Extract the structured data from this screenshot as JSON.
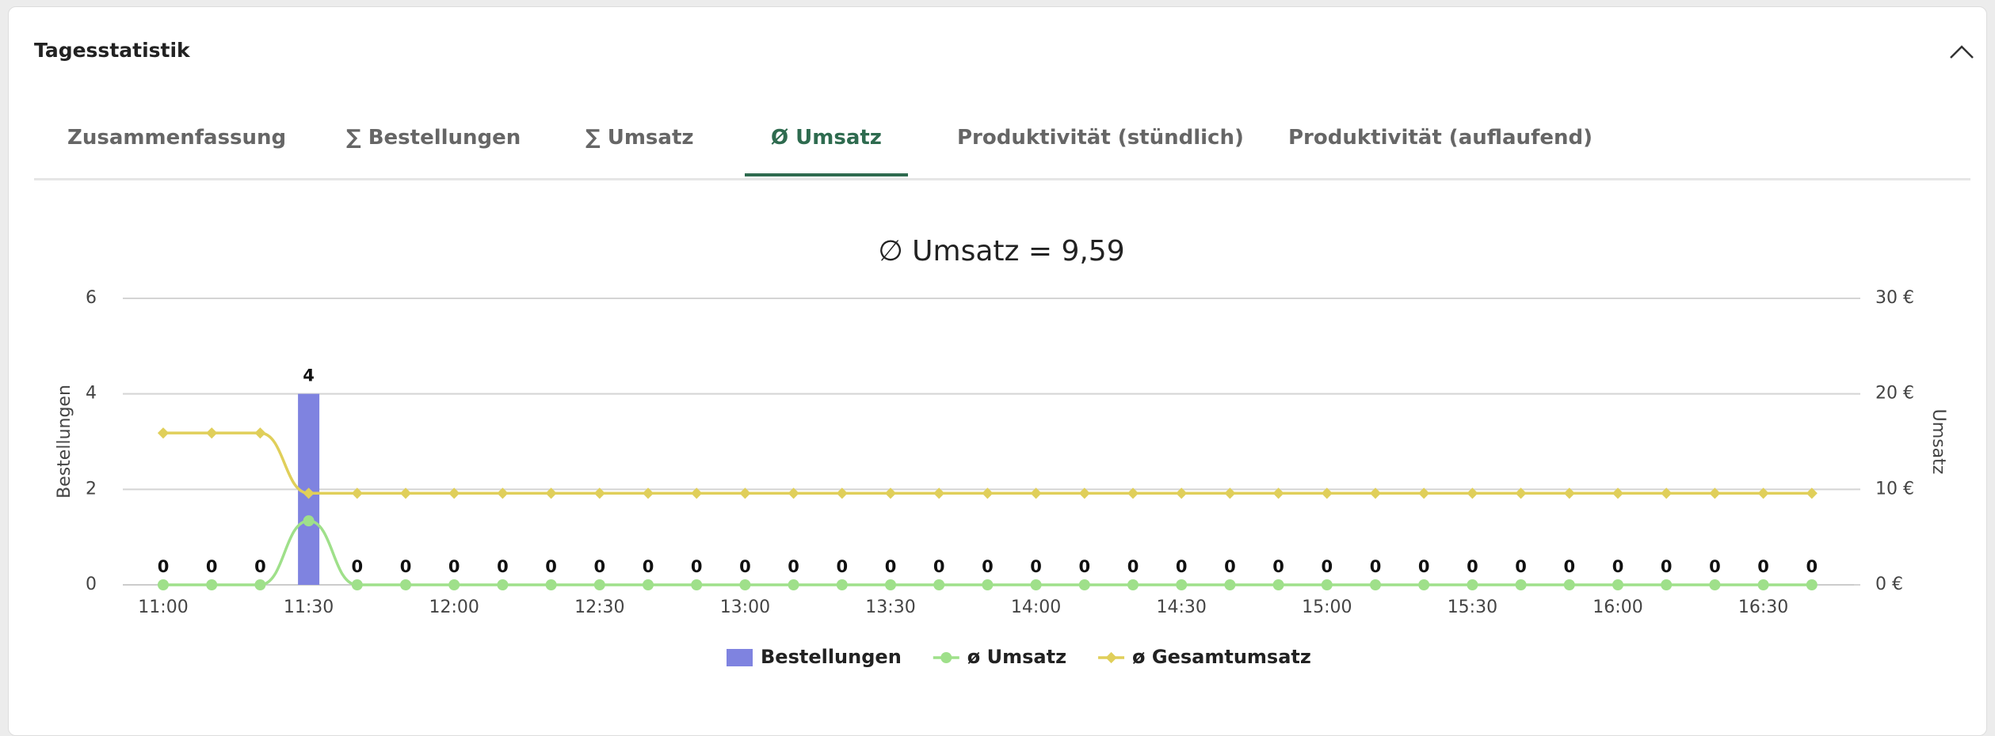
{
  "header": {
    "title": "Tagesstatistik"
  },
  "tabs": [
    "Zusammenfassung",
    "∑ Bestellungen",
    "∑ Umsatz",
    "Ø Umsatz",
    "Produktivität (stündlich)",
    "Produktivität (auflaufend)"
  ],
  "active_tab": 3,
  "chart_data": {
    "type": "bar",
    "title": "∅ Umsatz = 9,59",
    "y_label": "Bestellungen",
    "y2_label": "Umsatz",
    "categories": [
      "11:00",
      null,
      null,
      "11:30",
      null,
      null,
      "12:00",
      null,
      null,
      "12:30",
      null,
      null,
      "13:00",
      null,
      null,
      "13:30",
      null,
      null,
      "14:00",
      null,
      null,
      "14:30",
      null,
      null,
      "15:00",
      null,
      null,
      "15:30",
      null,
      null,
      "16:00",
      null,
      null,
      "16:30",
      null
    ],
    "series": [
      {
        "name": "Bestellungen",
        "type": "bar",
        "color": "#7f83e0",
        "values": [
          0,
          0,
          0,
          4,
          0,
          0,
          0,
          0,
          0,
          0,
          0,
          0,
          0,
          0,
          0,
          0,
          0,
          0,
          0,
          0,
          0,
          0,
          0,
          0,
          0,
          0,
          0,
          0,
          0,
          0,
          0,
          0,
          0,
          0,
          0
        ]
      },
      {
        "name": "ø Umsatz",
        "type": "line",
        "axis": "y2",
        "marker": "circle",
        "color": "#9fe08a",
        "values": [
          0,
          0,
          0,
          6.7,
          0,
          0,
          0,
          0,
          0,
          0,
          0,
          0,
          0,
          0,
          0,
          0,
          0,
          0,
          0,
          0,
          0,
          0,
          0,
          0,
          0,
          0,
          0,
          0,
          0,
          0,
          0,
          0,
          0,
          0,
          0
        ]
      },
      {
        "name": "ø Gesamtumsatz",
        "type": "line",
        "axis": "y2",
        "marker": "diamond",
        "color": "#e0cf5a",
        "values": [
          15.9,
          15.9,
          15.9,
          9.59,
          9.59,
          9.59,
          9.59,
          9.59,
          9.59,
          9.59,
          9.59,
          9.59,
          9.59,
          9.59,
          9.59,
          9.59,
          9.59,
          9.59,
          9.59,
          9.59,
          9.59,
          9.59,
          9.59,
          9.59,
          9.59,
          9.59,
          9.59,
          9.59,
          9.59,
          9.59,
          9.59,
          9.59,
          9.59,
          9.59,
          9.59
        ]
      }
    ],
    "ylim": [
      0,
      6
    ],
    "yticks": [
      0,
      2,
      4,
      6
    ],
    "y2lim": [
      0,
      30
    ],
    "y2ticks": [
      {
        "value": 0,
        "label": "0 €"
      },
      {
        "value": 10,
        "label": "10 €"
      },
      {
        "value": 20,
        "label": "20 €"
      },
      {
        "value": 30,
        "label": "30 €"
      }
    ],
    "grid": true
  }
}
